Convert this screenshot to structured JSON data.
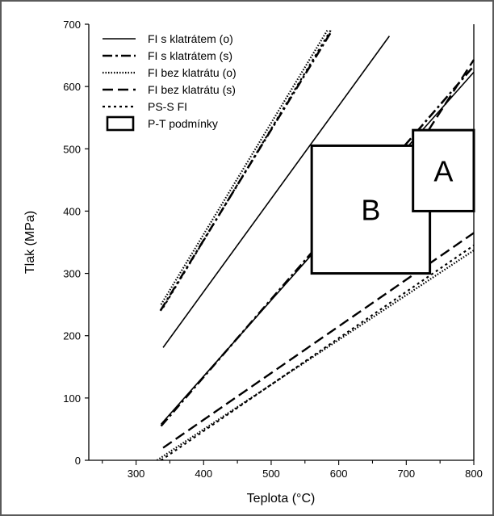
{
  "chart_data": {
    "type": "line",
    "xlabel": "Teplota (°C)",
    "ylabel": "Tlak (MPa)",
    "xlim": [
      230,
      800
    ],
    "ylim": [
      0,
      700
    ],
    "xticks": [
      300,
      400,
      500,
      600,
      700,
      800
    ],
    "yticks": [
      0,
      100,
      200,
      300,
      400,
      500,
      600,
      700
    ],
    "grid": false,
    "legend_position": "top-left",
    "series": [
      {
        "name": "FI s klatrátem (o)",
        "style": "solid",
        "segments": [
          [
            [
              340,
              181
            ],
            [
              675,
              681
            ]
          ],
          [
            [
              337,
              58
            ],
            [
              800,
              623
            ]
          ]
        ]
      },
      {
        "name": "FI s klatrátem (s)",
        "style": "dashdot",
        "segments": [
          [
            [
              336,
              240
            ],
            [
              590,
              690
            ]
          ],
          [
            [
              337,
              55
            ],
            [
              800,
              633
            ]
          ]
        ]
      },
      {
        "name": "FI bez klatrátu (o)",
        "style": "dotted",
        "segments": [
          [
            [
              337,
              250
            ],
            [
              583,
              690
            ]
          ],
          [
            [
              331,
              0
            ],
            [
              800,
              337
            ]
          ]
        ]
      },
      {
        "name": "FI bez klatrátu (s)",
        "style": "dashed",
        "segments": [
          [
            [
              340,
              20
            ],
            [
              800,
              365
            ]
          ],
          [
            [
              733,
              530
            ],
            [
              800,
              643
            ]
          ]
        ]
      },
      {
        "name": "PS-S FI",
        "style": "shortdot",
        "segments": [
          [
            [
              340,
              245
            ],
            [
              588,
              690
            ]
          ],
          [
            [
              337,
              0
            ],
            [
              800,
              345
            ]
          ]
        ]
      }
    ],
    "boxes": [
      {
        "name": "P-T podmínky",
        "label": "B",
        "x": [
          560,
          735
        ],
        "y": [
          300,
          505
        ]
      },
      {
        "name": "P-T podmínky",
        "label": "A",
        "x": [
          710,
          800
        ],
        "y": [
          400,
          530
        ]
      }
    ],
    "legend": [
      {
        "label": "FI s klatrátem (o)",
        "style": "solid"
      },
      {
        "label": "FI s klatrátem (s)",
        "style": "dashdot"
      },
      {
        "label": "FI bez klatrátu (o)",
        "style": "dotted"
      },
      {
        "label": "FI bez klatrátu (s)",
        "style": "dashed"
      },
      {
        "label": "PS-S FI",
        "style": "shortdot"
      },
      {
        "label": "P-T podmínky",
        "style": "box"
      }
    ]
  }
}
